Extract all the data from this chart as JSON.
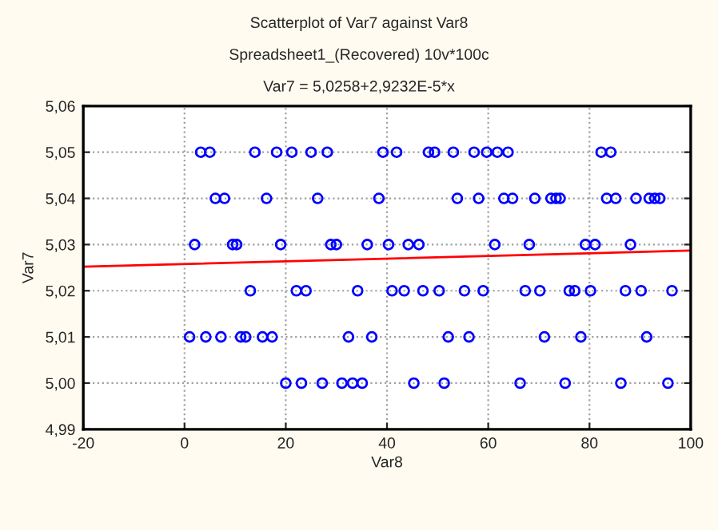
{
  "chart_data": {
    "type": "scatter",
    "title": "Scatterplot of Var7 against Var8",
    "subtitle": "Spreadsheet1_(Recovered) 10v*100c",
    "annotations": [
      "Var7 = 5,0258+2,9232E-5*x"
    ],
    "xlabel": "Var8",
    "ylabel": "Var7",
    "series": [
      {
        "color": "#0000ff",
        "marker": "circle",
        "x": [
          3.2,
          5.0,
          13.9,
          18.2,
          21.2,
          25.0,
          28.2,
          39.2,
          41.9,
          48.2,
          49.4,
          53.1,
          57.2,
          59.7,
          61.8,
          63.9,
          82.3,
          84.2,
          6.1,
          7.9,
          16.2,
          26.3,
          38.4,
          53.9,
          58.1,
          63.1,
          64.8,
          69.2,
          72.4,
          73.4,
          74.2,
          83.4,
          85.2,
          89.2,
          91.8,
          92.9,
          93.9,
          2.0,
          9.5,
          10.3,
          19.0,
          28.9,
          30.0,
          36.1,
          40.3,
          44.2,
          46.3,
          61.3,
          68.1,
          79.2,
          81.1,
          88.1,
          13.0,
          22.1,
          24.0,
          34.2,
          41.0,
          43.4,
          47.1,
          50.3,
          55.3,
          59.0,
          67.3,
          70.2,
          76.0,
          77.1,
          80.2,
          87.1,
          90.2,
          96.3,
          1.0,
          4.2,
          7.2,
          11.1,
          12.1,
          15.4,
          17.3,
          32.4,
          37.0,
          52.1,
          56.2,
          71.1,
          78.3,
          91.3,
          20.0,
          23.1,
          27.2,
          31.1,
          33.2,
          35.1,
          45.3,
          51.3,
          66.3,
          75.2,
          86.2,
          95.5
        ],
        "values": [
          5.05,
          5.05,
          5.05,
          5.05,
          5.05,
          5.05,
          5.05,
          5.05,
          5.05,
          5.05,
          5.05,
          5.05,
          5.05,
          5.05,
          5.05,
          5.05,
          5.05,
          5.05,
          5.04,
          5.04,
          5.04,
          5.04,
          5.04,
          5.04,
          5.04,
          5.04,
          5.04,
          5.04,
          5.04,
          5.04,
          5.04,
          5.04,
          5.04,
          5.04,
          5.04,
          5.04,
          5.04,
          5.03,
          5.03,
          5.03,
          5.03,
          5.03,
          5.03,
          5.03,
          5.03,
          5.03,
          5.03,
          5.03,
          5.03,
          5.03,
          5.03,
          5.03,
          5.02,
          5.02,
          5.02,
          5.02,
          5.02,
          5.02,
          5.02,
          5.02,
          5.02,
          5.02,
          5.02,
          5.02,
          5.02,
          5.02,
          5.02,
          5.02,
          5.02,
          5.02,
          5.01,
          5.01,
          5.01,
          5.01,
          5.01,
          5.01,
          5.01,
          5.01,
          5.01,
          5.01,
          5.01,
          5.01,
          5.01,
          5.01,
          5.0,
          5.0,
          5.0,
          5.0,
          5.0,
          5.0,
          5.0,
          5.0,
          5.0,
          5.0,
          5.0,
          5.0
        ]
      },
      {
        "type": "line",
        "color": "#ff0000",
        "x": [
          -20,
          100
        ],
        "values": [
          5.0252,
          5.0287
        ]
      }
    ],
    "xlim": [
      -20,
      100
    ],
    "xticks": [
      -20,
      0,
      20,
      40,
      60,
      80,
      100
    ],
    "ylim": [
      4.99,
      5.06
    ],
    "yticks": [
      {
        "value": 4.99,
        "label": "4,99"
      },
      {
        "value": 5.0,
        "label": "5,00"
      },
      {
        "value": 5.01,
        "label": "5,01"
      },
      {
        "value": 5.02,
        "label": "5,02"
      },
      {
        "value": 5.03,
        "label": "5,03"
      },
      {
        "value": 5.04,
        "label": "5,04"
      },
      {
        "value": 5.05,
        "label": "5,05"
      },
      {
        "value": 5.06,
        "label": "5,06"
      }
    ],
    "grid": true,
    "legend": false
  }
}
